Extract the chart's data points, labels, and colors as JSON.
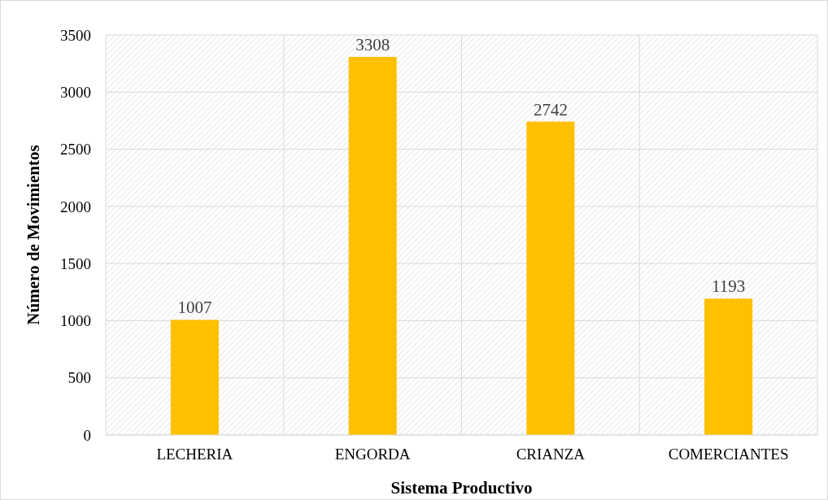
{
  "chart_data": {
    "type": "bar",
    "xlabel": "Sistema Productivo",
    "ylabel": "Número de Movimientos",
    "categories": [
      "LECHERIA",
      "ENGORDA",
      "CRIANZA",
      "COMERCIANTES"
    ],
    "values": [
      1007,
      3308,
      2742,
      1193
    ],
    "color": "#ffc000",
    "ylim": [
      0,
      3500
    ],
    "yticks": [
      0,
      500,
      1000,
      1500,
      2000,
      2500,
      3000,
      3500
    ],
    "grid": true,
    "data_labels": true
  }
}
